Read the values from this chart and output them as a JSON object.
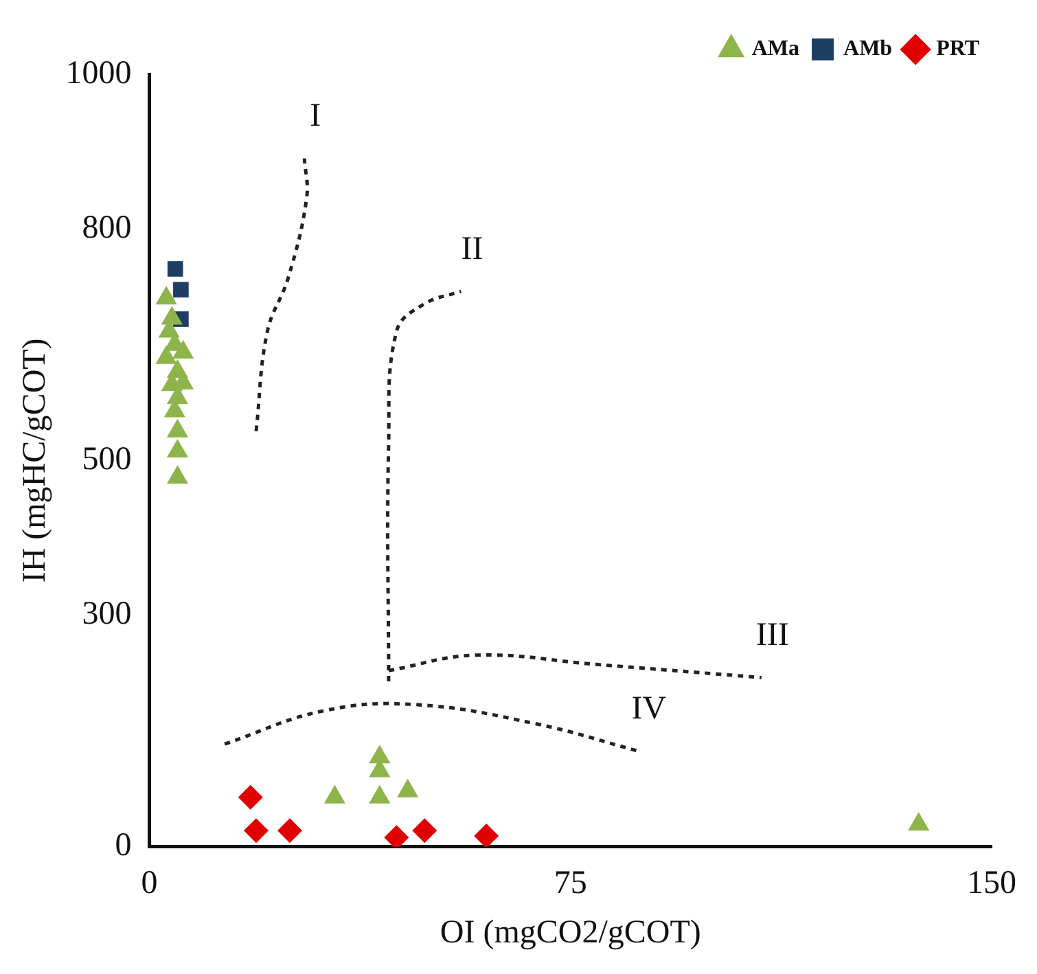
{
  "chart_data": {
    "type": "scatter",
    "xlabel": "OI (mgCO2/gCOT)",
    "ylabel": "IH (mgHC/gCOT)",
    "xlim": [
      0,
      150
    ],
    "ylim": [
      0,
      1000
    ],
    "xticks": [
      0,
      75,
      150
    ],
    "yticks": [
      0,
      300,
      500,
      800,
      1000
    ],
    "grid": false,
    "legend": "top right",
    "series": [
      {
        "name": "AMa",
        "color": "#8db54b",
        "marker": "triangle",
        "x": [
          3,
          4,
          3.5,
          4.5,
          3,
          5,
          4,
          5,
          4.5,
          5,
          5,
          5,
          6,
          6,
          33,
          41,
          41,
          41,
          46,
          137
        ],
        "values": [
          710,
          684,
          667,
          650,
          633,
          615,
          598,
          581,
          564,
          538,
          512,
          478,
          600,
          640,
          64,
          98,
          116,
          64,
          72,
          29
        ]
      },
      {
        "name": "AMb",
        "color": "#1f3e63",
        "marker": "square",
        "x": [
          4.6,
          5.6,
          5.6
        ],
        "values": [
          748,
          721,
          683
        ]
      },
      {
        "name": "PRT",
        "color": "#e00000",
        "marker": "diamond",
        "x": [
          18,
          19,
          25,
          44,
          49,
          60
        ],
        "values": [
          64,
          21,
          21,
          12,
          21,
          14
        ]
      },
      {
        "name": "I",
        "type": "line",
        "color": "#222222",
        "line_style": "dotted",
        "marker": "none",
        "x": [
          19,
          21,
          24.7,
          28,
          27.6
        ],
        "values": [
          538,
          667,
          736,
          840,
          891
        ]
      },
      {
        "name": "II",
        "type": "line",
        "color": "#222222",
        "line_style": "dotted",
        "marker": "none",
        "x": [
          42.6,
          42.6,
          44,
          48.8,
          55.5
        ],
        "values": [
          214,
          521,
          667,
          702,
          719
        ]
      },
      {
        "name": "III",
        "type": "line",
        "color": "#222222",
        "line_style": "dotted",
        "marker": "none",
        "x": [
          42.6,
          58,
          79.6,
          109
        ],
        "values": [
          228,
          248,
          236,
          219
        ]
      },
      {
        "name": "IV",
        "type": "line",
        "color": "#222222",
        "line_style": "dotted",
        "marker": "none",
        "x": [
          13.4,
          31,
          47.5,
          69,
          87
        ],
        "values": [
          133,
          176,
          184,
          159,
          124
        ]
      }
    ]
  }
}
